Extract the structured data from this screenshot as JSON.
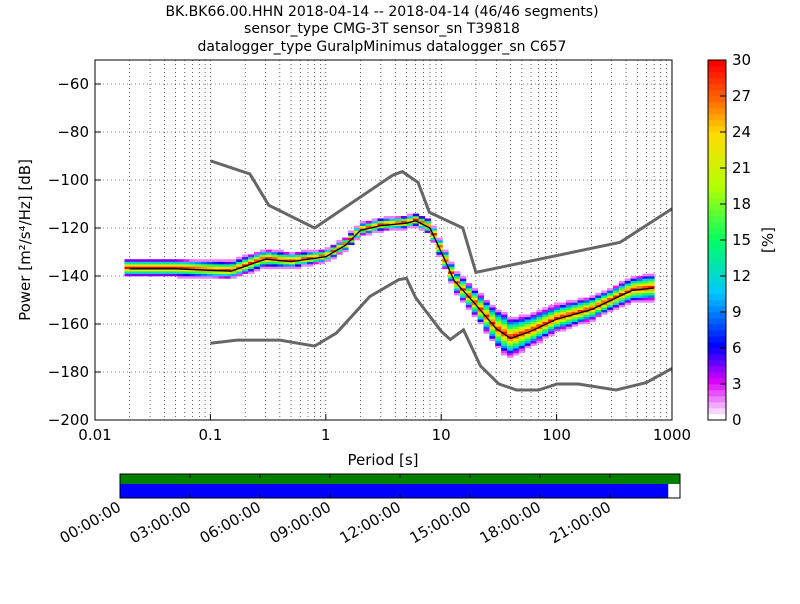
{
  "chart_data": {
    "type": "heatmap",
    "title_lines": [
      "BK.BK66.00.HHN   2018-04-14 -- 2018-04-14  (46/46 segments)",
      "sensor_type CMG-3T sensor_sn T39818",
      "datalogger_type GuralpMinimus datalogger_sn C657"
    ],
    "xlabel": "Period [s]",
    "ylabel": "Power [m²/s⁴/Hz] [dB]",
    "xscale": "log",
    "xlim": [
      0.01,
      1000
    ],
    "ylim": [
      -200,
      -50
    ],
    "xticks": [
      {
        "v": 0.01,
        "label": "0.01"
      },
      {
        "v": 0.1,
        "label": "0.1"
      },
      {
        "v": 1,
        "label": "1"
      },
      {
        "v": 10,
        "label": "10"
      },
      {
        "v": 100,
        "label": "100"
      },
      {
        "v": 1000,
        "label": "1000"
      }
    ],
    "yticks": [
      {
        "v": -60,
        "label": "−60"
      },
      {
        "v": -80,
        "label": "−80"
      },
      {
        "v": -100,
        "label": "−100"
      },
      {
        "v": -120,
        "label": "−120"
      },
      {
        "v": -140,
        "label": "−140"
      },
      {
        "v": -160,
        "label": "−160"
      },
      {
        "v": -180,
        "label": "−180"
      },
      {
        "v": -200,
        "label": "−200"
      }
    ],
    "grid": true,
    "colorbar": {
      "label": "[%]",
      "range": [
        0,
        30
      ],
      "ticks": [
        "0",
        "3",
        "6",
        "9",
        "12",
        "15",
        "18",
        "21",
        "24",
        "27",
        "30"
      ]
    },
    "nhnm": [
      [
        0.1,
        -92
      ],
      [
        0.22,
        -97.5
      ],
      [
        0.32,
        -110.5
      ],
      [
        0.8,
        -120
      ],
      [
        3.8,
        -98
      ],
      [
        4.6,
        -96.5
      ],
      [
        6.3,
        -101
      ],
      [
        7.9,
        -113.5
      ],
      [
        15.4,
        -120
      ],
      [
        20,
        -138.5
      ],
      [
        354,
        -126
      ],
      [
        1000,
        -112
      ]
    ],
    "nlnm": [
      [
        0.1,
        -168
      ],
      [
        0.17,
        -166.7
      ],
      [
        0.4,
        -166.7
      ],
      [
        0.8,
        -169.2
      ],
      [
        1.24,
        -163.7
      ],
      [
        2.4,
        -148.6
      ],
      [
        4.3,
        -141.5
      ],
      [
        5,
        -141
      ],
      [
        6,
        -149
      ],
      [
        10,
        -163
      ],
      [
        12,
        -166.5
      ],
      [
        15.6,
        -162.4
      ],
      [
        21.9,
        -177.5
      ],
      [
        31.6,
        -185
      ],
      [
        45,
        -187.5
      ],
      [
        70,
        -187.5
      ],
      [
        101,
        -185
      ],
      [
        154,
        -185
      ],
      [
        328,
        -187.5
      ],
      [
        600,
        -184.4
      ],
      [
        1000,
        -178.5
      ]
    ],
    "mean": [
      [
        0.02,
        -137
      ],
      [
        0.05,
        -137
      ],
      [
        0.15,
        -138
      ],
      [
        0.3,
        -133
      ],
      [
        0.5,
        -134
      ],
      [
        1,
        -132
      ],
      [
        1.5,
        -127
      ],
      [
        2,
        -121
      ],
      [
        3,
        -119
      ],
      [
        5,
        -118
      ],
      [
        6,
        -117
      ],
      [
        8,
        -120
      ],
      [
        10,
        -130
      ],
      [
        13,
        -142
      ],
      [
        20,
        -152
      ],
      [
        30,
        -162
      ],
      [
        40,
        -166
      ],
      [
        60,
        -163
      ],
      [
        100,
        -158
      ],
      [
        200,
        -154
      ],
      [
        300,
        -150
      ],
      [
        450,
        -146
      ],
      [
        700,
        -145
      ]
    ],
    "band_spread_db": [
      [
        0.02,
        3
      ],
      [
        0.1,
        3
      ],
      [
        0.3,
        3
      ],
      [
        1,
        2
      ],
      [
        2,
        2
      ],
      [
        6,
        2
      ],
      [
        10,
        3
      ],
      [
        20,
        5
      ],
      [
        35,
        8
      ],
      [
        60,
        6
      ],
      [
        100,
        5
      ],
      [
        300,
        4
      ],
      [
        700,
        5
      ]
    ]
  },
  "timeline": {
    "ticks": [
      "00:00:00",
      "03:00:00",
      "06:00:00",
      "09:00:00",
      "12:00:00",
      "15:00:00",
      "18:00:00",
      "21:00:00"
    ],
    "data_coverage_fraction": 1.0,
    "psd_coverage_fraction": 0.979,
    "colors": {
      "data": "#008000",
      "psd": "#0000ff"
    }
  }
}
